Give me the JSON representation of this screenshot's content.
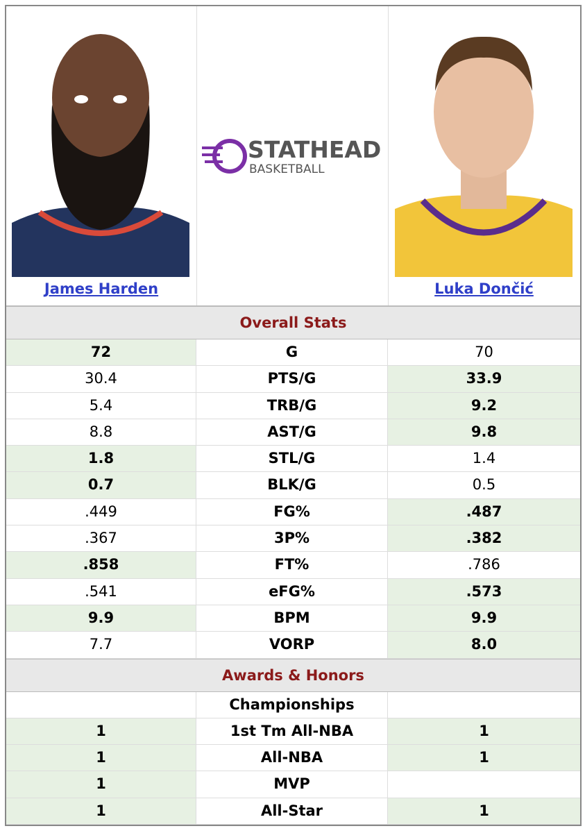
{
  "brand": {
    "name": "STATHEAD",
    "sub": "BASKETBALL"
  },
  "players": [
    {
      "name": "James Harden"
    },
    {
      "name": "Luka Dončić"
    }
  ],
  "sections": [
    {
      "title": "Overall Stats",
      "rows": [
        {
          "label": "G",
          "left": "72",
          "right": "70",
          "better": "left"
        },
        {
          "label": "PTS/G",
          "left": "30.4",
          "right": "33.9",
          "better": "right"
        },
        {
          "label": "TRB/G",
          "left": "5.4",
          "right": "9.2",
          "better": "right"
        },
        {
          "label": "AST/G",
          "left": "8.8",
          "right": "9.8",
          "better": "right"
        },
        {
          "label": "STL/G",
          "left": "1.8",
          "right": "1.4",
          "better": "left"
        },
        {
          "label": "BLK/G",
          "left": "0.7",
          "right": "0.5",
          "better": "left"
        },
        {
          "label": "FG%",
          "left": ".449",
          "right": ".487",
          "better": "right"
        },
        {
          "label": "3P%",
          "left": ".367",
          "right": ".382",
          "better": "right"
        },
        {
          "label": "FT%",
          "left": ".858",
          "right": ".786",
          "better": "left"
        },
        {
          "label": "eFG%",
          "left": ".541",
          "right": ".573",
          "better": "right"
        },
        {
          "label": "BPM",
          "left": "9.9",
          "right": "9.9",
          "better": "both"
        },
        {
          "label": "VORP",
          "left": "7.7",
          "right": "8.0",
          "better": "right"
        }
      ]
    },
    {
      "title": "Awards & Honors",
      "rows": [
        {
          "label": "Championships",
          "left": null,
          "right": null,
          "better": null
        },
        {
          "label": "1st Tm All-NBA",
          "left": "1",
          "right": "1",
          "better": "both"
        },
        {
          "label": "All-NBA",
          "left": "1",
          "right": "1",
          "better": "both"
        },
        {
          "label": "MVP",
          "left": "1",
          "right": null,
          "better": "left"
        },
        {
          "label": "All-Star",
          "left": "1",
          "right": "1",
          "better": "both"
        }
      ]
    }
  ]
}
